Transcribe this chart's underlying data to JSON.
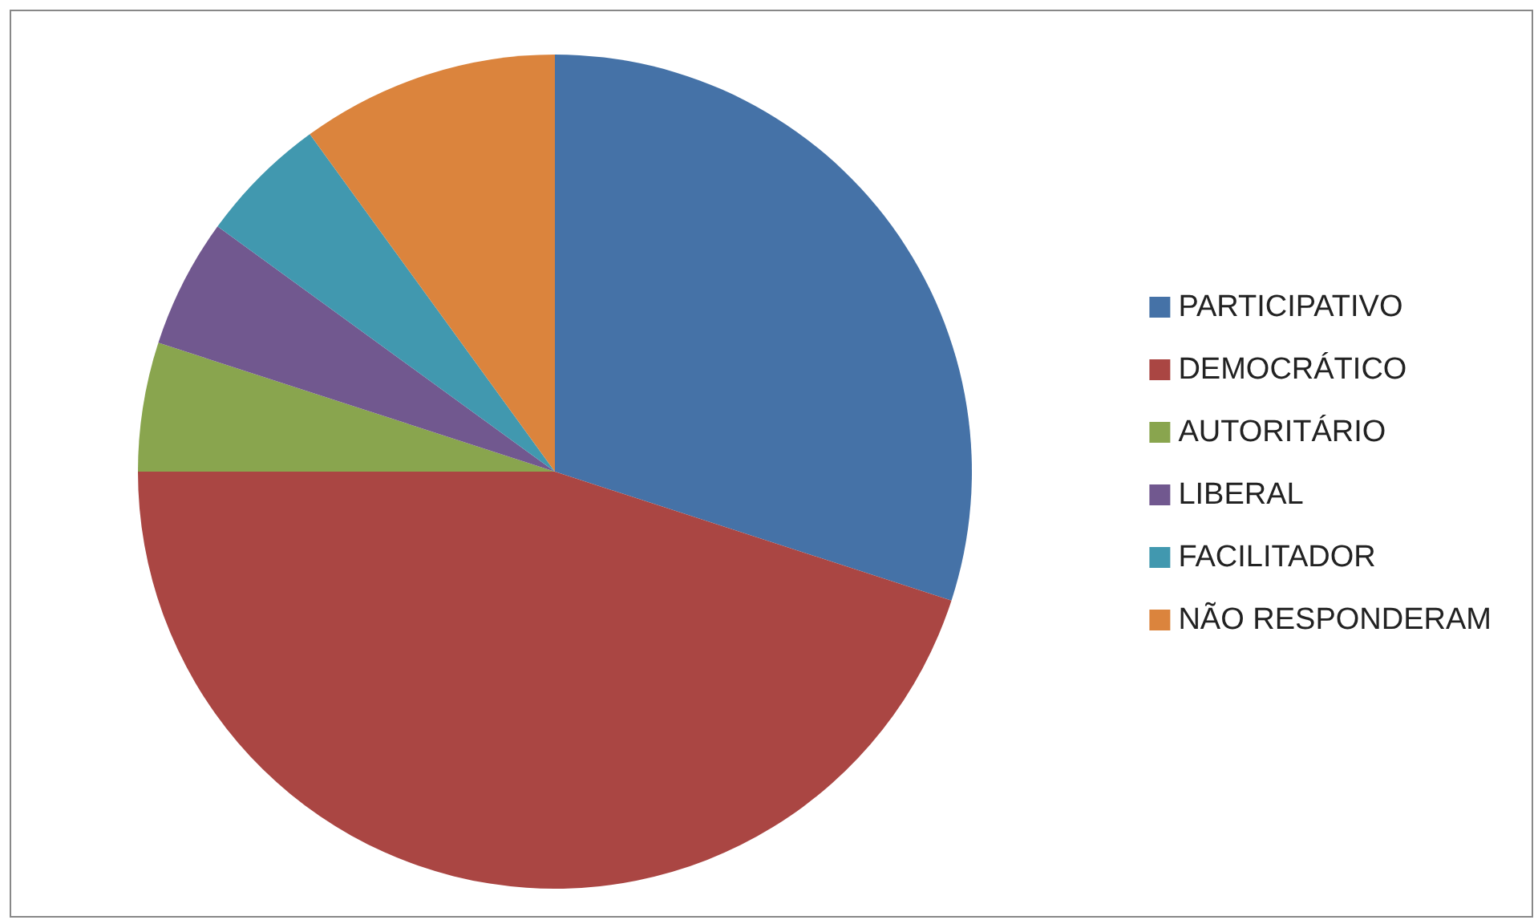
{
  "chart_data": {
    "type": "pie",
    "categories": [
      "PARTICIPATIVO",
      "DEMOCRÁTICO",
      "AUTORITÁRIO",
      "LIBERAL",
      "FACILITADOR",
      "NÃO RESPONDERAM"
    ],
    "values": [
      30,
      45,
      5,
      5,
      5,
      10
    ],
    "colors": [
      "#4572a7",
      "#aa4643",
      "#89a54e",
      "#71588f",
      "#4198af",
      "#db843d"
    ],
    "legend": "right"
  }
}
